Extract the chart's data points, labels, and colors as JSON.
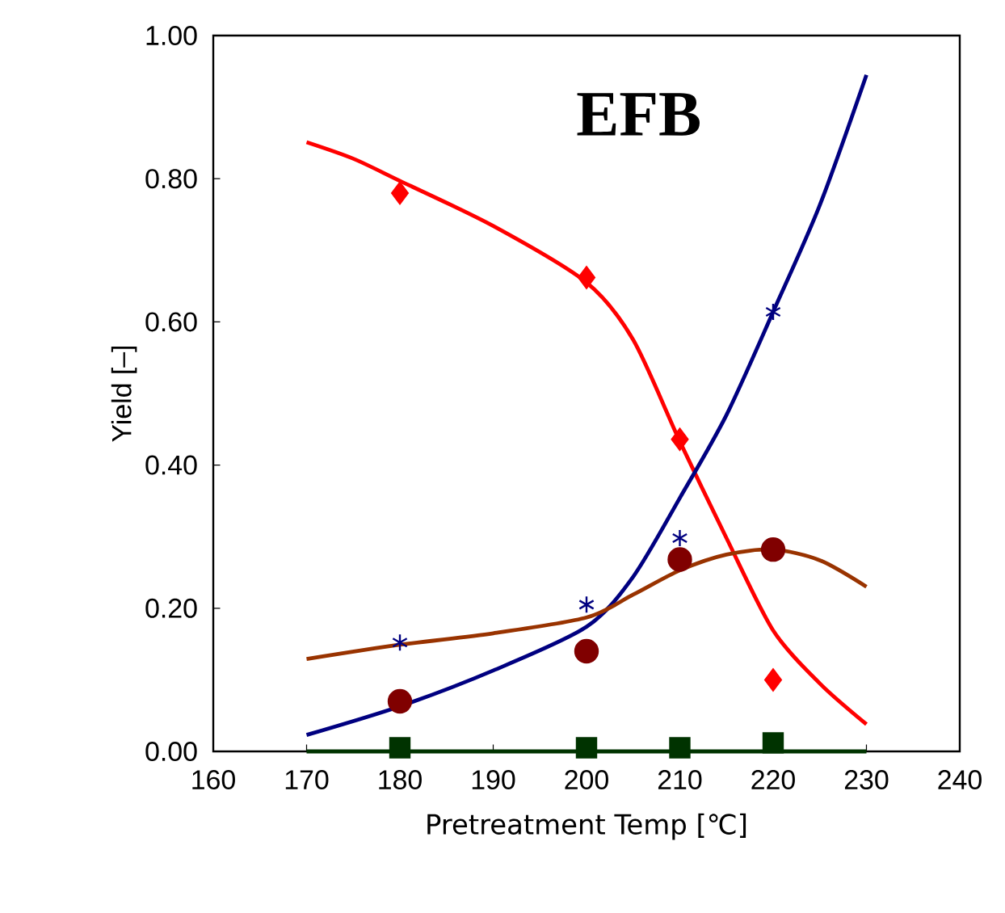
{
  "chart_data": {
    "type": "scatter",
    "title": "EFB",
    "xlabel": "Pretreatment Temp [℃]",
    "ylabel": "Yield [–]",
    "xlim": [
      160,
      240
    ],
    "xticks": [
      160,
      170,
      180,
      190,
      200,
      210,
      220,
      230,
      240
    ],
    "ylim": [
      0,
      1
    ],
    "yticks": [
      {
        "value": 0,
        "label": "0.00"
      },
      {
        "value": 0.2,
        "label": "0.20"
      },
      {
        "value": 0.4,
        "label": "0.40"
      },
      {
        "value": 0.6,
        "label": "0.60"
      },
      {
        "value": 0.8,
        "label": "0.80"
      },
      {
        "value": 1,
        "label": "1.00"
      }
    ],
    "grid": false,
    "series": [
      {
        "type": "line",
        "color": "#ff0000",
        "marker": "none",
        "x": [
          170,
          175,
          180,
          190,
          200,
          205,
          210,
          215,
          220,
          225,
          230
        ],
        "values": [
          0.851,
          0.828,
          0.797,
          0.734,
          0.655,
          0.575,
          0.433,
          0.298,
          0.169,
          0.095,
          0.038
        ]
      },
      {
        "type": "line",
        "color": "#000080",
        "marker": "none",
        "x": [
          170,
          180,
          190,
          200,
          205,
          210,
          215,
          220,
          225,
          230
        ],
        "values": [
          0.023,
          0.063,
          0.113,
          0.174,
          0.244,
          0.354,
          0.47,
          0.614,
          0.763,
          0.945
        ]
      },
      {
        "type": "line",
        "color": "#993300",
        "marker": "none",
        "x": [
          170,
          180,
          190,
          200,
          205,
          210,
          215,
          220,
          225,
          230
        ],
        "values": [
          0.129,
          0.149,
          0.165,
          0.187,
          0.219,
          0.253,
          0.275,
          0.282,
          0.267,
          0.23
        ]
      },
      {
        "type": "line",
        "color": "#003300",
        "marker": "none",
        "x": [
          170,
          230
        ],
        "values": [
          0,
          0
        ]
      },
      {
        "color": "#ff0000",
        "marker": "diamond",
        "x": [
          180,
          200,
          210,
          220
        ],
        "values": [
          0.78,
          0.662,
          0.436,
          0.1
        ]
      },
      {
        "color": "#000080",
        "marker": "cross",
        "x": [
          180,
          200,
          210,
          220
        ],
        "values": [
          0.152,
          0.205,
          0.298,
          0.614
        ]
      },
      {
        "color": "#800000",
        "marker": "circle",
        "x": [
          180,
          200,
          210,
          220
        ],
        "values": [
          0.07,
          0.14,
          0.268,
          0.282
        ]
      },
      {
        "color": "#003300",
        "marker": "square",
        "x": [
          180,
          200,
          210,
          220
        ],
        "values": [
          0.005,
          0.005,
          0.005,
          0.012
        ]
      }
    ]
  }
}
